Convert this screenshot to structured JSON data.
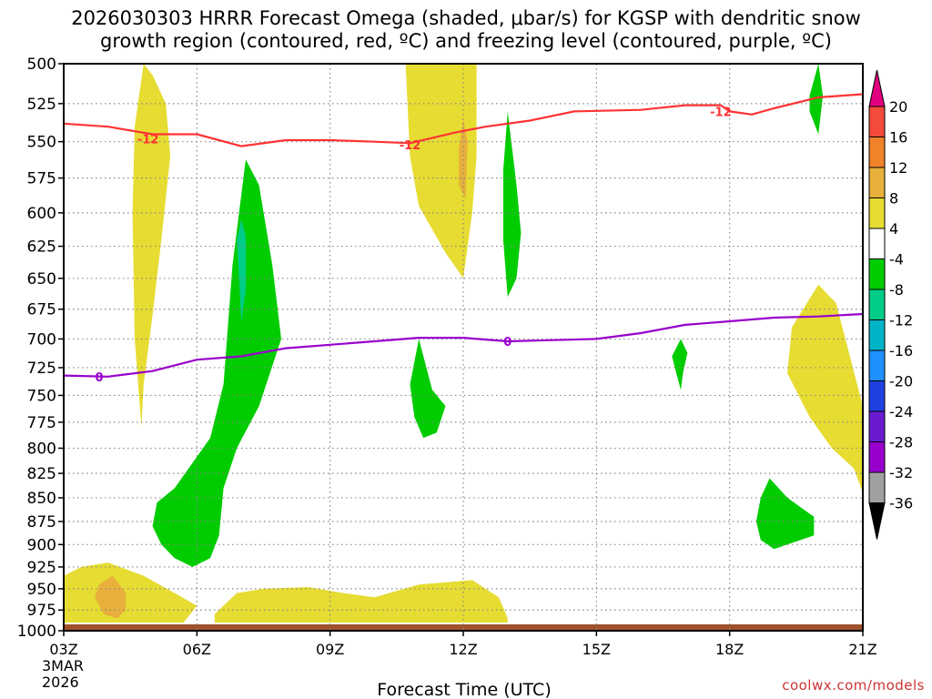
{
  "title": {
    "line1": "2026030303 HRRR Forecast Omega (shaded, μbar/s) for KGSP with dendritic snow",
    "line2": "growth region (contoured, red, ºC) and freezing level (contoured, purple, ºC)"
  },
  "credit": "coolwx.com/models",
  "colors": {
    "plot_background": "#ffffff",
    "ground": "#a0522d",
    "red_contour": "#ff3333",
    "purple_contour": "#9900cc"
  },
  "chart_data": {
    "type": "time-height contour",
    "title": "2026030303 HRRR Forecast Omega (shaded, μbar/s) for KGSP with dendritic snow growth region (contoured, red, ºC) and freezing level (contoured, purple, ºC)",
    "xlabel": "Forecast Time (UTC)",
    "ylabel": "",
    "x_range_hours": [
      3,
      21
    ],
    "y_range_hpa": [
      1000,
      500
    ],
    "y_scale": "log-pressure",
    "date_label": [
      "3MAR",
      "2026"
    ],
    "x_ticks": [
      {
        "hour": 3,
        "label": "03Z"
      },
      {
        "hour": 6,
        "label": "06Z"
      },
      {
        "hour": 9,
        "label": "09Z"
      },
      {
        "hour": 12,
        "label": "12Z"
      },
      {
        "hour": 15,
        "label": "15Z"
      },
      {
        "hour": 18,
        "label": "18Z"
      },
      {
        "hour": 21,
        "label": "21Z"
      }
    ],
    "y_ticks": [
      "500",
      "525",
      "550",
      "575",
      "600",
      "625",
      "650",
      "675",
      "700",
      "725",
      "750",
      "775",
      "800",
      "825",
      "850",
      "875",
      "900",
      "925",
      "950",
      "975",
      "1000"
    ],
    "grid": true,
    "colorbar": {
      "levels": [
        "20",
        "16",
        "12",
        "8",
        "4",
        "-4",
        "-8",
        "-12",
        "-16",
        "-20",
        "-24",
        "-28",
        "-32",
        "-36"
      ],
      "bins": [
        {
          "from": 20,
          "to": null,
          "color": "#e0007f"
        },
        {
          "from": 16,
          "to": 20,
          "color": "#f44b3c"
        },
        {
          "from": 12,
          "to": 16,
          "color": "#f0822a"
        },
        {
          "from": 8,
          "to": 12,
          "color": "#e8b03b"
        },
        {
          "from": 4,
          "to": 8,
          "color": "#e6dc32"
        },
        {
          "from": -4,
          "to": 4,
          "color": "#ffffff"
        },
        {
          "from": -8,
          "to": -4,
          "color": "#00cc00"
        },
        {
          "from": -12,
          "to": -8,
          "color": "#00cc88"
        },
        {
          "from": -16,
          "to": -12,
          "color": "#00b4c8"
        },
        {
          "from": -20,
          "to": -16,
          "color": "#1e90ff"
        },
        {
          "from": -24,
          "to": -20,
          "color": "#2040e0"
        },
        {
          "from": -28,
          "to": -24,
          "color": "#6a1bd0"
        },
        {
          "from": -32,
          "to": -28,
          "color": "#9900cc"
        },
        {
          "from": -36,
          "to": -32,
          "color": "#a0a0a0"
        },
        {
          "from": null,
          "to": -36,
          "color": "#000000"
        }
      ]
    },
    "omega_regions": [
      {
        "name": "upward-motion-06z-tower",
        "level": "-4 to -8",
        "color": "#00cc00",
        "points": [
          [
            5.0,
            880
          ],
          [
            5.1,
            855
          ],
          [
            5.5,
            840
          ],
          [
            6.3,
            790
          ],
          [
            6.6,
            740
          ],
          [
            6.8,
            640
          ],
          [
            7.1,
            562
          ],
          [
            7.4,
            580
          ],
          [
            7.7,
            640
          ],
          [
            7.9,
            700
          ],
          [
            7.4,
            760
          ],
          [
            6.9,
            800
          ],
          [
            6.6,
            840
          ],
          [
            6.5,
            890
          ],
          [
            6.3,
            915
          ],
          [
            5.9,
            925
          ],
          [
            5.5,
            915
          ],
          [
            5.2,
            900
          ]
        ]
      },
      {
        "name": "upward-motion-07z-core",
        "level": "-8 to -12",
        "color": "#00cc88",
        "points": [
          [
            7.0,
            605
          ],
          [
            7.1,
            617
          ],
          [
            7.1,
            660
          ],
          [
            7.0,
            685
          ],
          [
            6.95,
            650
          ],
          [
            6.9,
            620
          ]
        ]
      },
      {
        "name": "upward-motion-11z",
        "level": "-4 to -8",
        "color": "#00cc00",
        "points": [
          [
            10.8,
            740
          ],
          [
            11.0,
            700
          ],
          [
            11.3,
            745
          ],
          [
            11.6,
            760
          ],
          [
            11.4,
            785
          ],
          [
            11.1,
            790
          ],
          [
            10.9,
            770
          ]
        ]
      },
      {
        "name": "upward-motion-13z",
        "level": "-4 to -8",
        "color": "#00cc00",
        "points": [
          [
            13.0,
            530
          ],
          [
            13.2,
            580
          ],
          [
            13.3,
            615
          ],
          [
            13.2,
            650
          ],
          [
            13.0,
            665
          ],
          [
            12.9,
            620
          ],
          [
            12.9,
            570
          ]
        ]
      },
      {
        "name": "upward-motion-17z",
        "level": "-4 to -8",
        "color": "#00cc00",
        "points": [
          [
            16.7,
            715
          ],
          [
            16.9,
            700
          ],
          [
            17.05,
            712
          ],
          [
            16.95,
            730
          ],
          [
            16.9,
            745
          ],
          [
            16.8,
            730
          ]
        ]
      },
      {
        "name": "upward-motion-19z-lower",
        "level": "-4 to -8",
        "color": "#00cc00",
        "points": [
          [
            18.6,
            875
          ],
          [
            18.7,
            850
          ],
          [
            18.9,
            830
          ],
          [
            19.3,
            850
          ],
          [
            19.9,
            870
          ],
          [
            19.9,
            890
          ],
          [
            19.3,
            900
          ],
          [
            19.0,
            905
          ],
          [
            18.7,
            895
          ]
        ]
      },
      {
        "name": "upward-motion-20z-upper",
        "level": "-4 to -8",
        "color": "#00cc00",
        "points": [
          [
            19.8,
            520
          ],
          [
            20.0,
            500
          ],
          [
            20.1,
            520
          ],
          [
            20.0,
            545
          ],
          [
            19.8,
            530
          ]
        ]
      },
      {
        "name": "sinking-motion-05z",
        "level": "4 to 8",
        "color": "#e6dc32",
        "points": [
          [
            4.8,
            500
          ],
          [
            5.0,
            507
          ],
          [
            5.3,
            525
          ],
          [
            5.4,
            560
          ],
          [
            5.2,
            620
          ],
          [
            5.0,
            680
          ],
          [
            4.8,
            740
          ],
          [
            4.75,
            780
          ],
          [
            4.6,
            700
          ],
          [
            4.55,
            600
          ],
          [
            4.6,
            540
          ]
        ]
      },
      {
        "name": "sinking-motion-11z",
        "level": "4 to 8",
        "color": "#e6dc32",
        "points": [
          [
            10.7,
            500
          ],
          [
            12.3,
            500
          ],
          [
            12.3,
            560
          ],
          [
            12.2,
            600
          ],
          [
            12.0,
            650
          ],
          [
            11.6,
            630
          ],
          [
            11.0,
            595
          ],
          [
            10.8,
            560
          ]
        ]
      },
      {
        "name": "sinking-motion-12z-core",
        "level": "8 to 12",
        "color": "#e8b03b",
        "points": [
          [
            12.0,
            535
          ],
          [
            12.1,
            550
          ],
          [
            12.05,
            590
          ],
          [
            11.9,
            580
          ],
          [
            11.9,
            555
          ]
        ]
      },
      {
        "name": "sinking-motion-20z",
        "level": "4 to 8",
        "color": "#e6dc32",
        "points": [
          [
            19.4,
            690
          ],
          [
            20.0,
            655
          ],
          [
            20.4,
            670
          ],
          [
            21.0,
            760
          ],
          [
            21.0,
            845
          ],
          [
            20.8,
            820
          ],
          [
            20.3,
            800
          ],
          [
            19.8,
            770
          ],
          [
            19.3,
            730
          ]
        ]
      },
      {
        "name": "sinking-motion-lowlevel-west",
        "level": "4 to 8",
        "color": "#e6dc32",
        "points": [
          [
            3.0,
            935
          ],
          [
            3.4,
            925
          ],
          [
            4.0,
            920
          ],
          [
            4.8,
            935
          ],
          [
            5.5,
            955
          ],
          [
            6.0,
            970
          ],
          [
            5.7,
            990
          ],
          [
            3.0,
            990
          ]
        ]
      },
      {
        "name": "sinking-motion-lowlevel-east",
        "level": "4 to 8",
        "color": "#e6dc32",
        "points": [
          [
            6.4,
            980
          ],
          [
            6.9,
            955
          ],
          [
            7.5,
            950
          ],
          [
            8.5,
            948
          ],
          [
            9.3,
            955
          ],
          [
            10.0,
            960
          ],
          [
            11.0,
            945
          ],
          [
            12.2,
            940
          ],
          [
            12.8,
            960
          ],
          [
            13.0,
            985
          ],
          [
            13.0,
            990
          ],
          [
            6.4,
            990
          ]
        ]
      },
      {
        "name": "sinking-motion-04z-core",
        "level": "8 to 12",
        "color": "#e8b03b",
        "points": [
          [
            3.8,
            945
          ],
          [
            4.1,
            935
          ],
          [
            4.4,
            955
          ],
          [
            4.4,
            975
          ],
          [
            4.2,
            985
          ],
          [
            3.9,
            980
          ],
          [
            3.7,
            960
          ]
        ]
      }
    ],
    "red_contour": {
      "label": "-12",
      "label_positions": [
        [
          4.9,
          548
        ],
        [
          10.8,
          552
        ],
        [
          17.8,
          530
        ]
      ],
      "points": [
        [
          3.0,
          538
        ],
        [
          4.0,
          540
        ],
        [
          5.0,
          545
        ],
        [
          6.0,
          545
        ],
        [
          6.5,
          549
        ],
        [
          7.0,
          553
        ],
        [
          8.0,
          549
        ],
        [
          9.0,
          549
        ],
        [
          10.0,
          550
        ],
        [
          10.8,
          551
        ],
        [
          11.8,
          544
        ],
        [
          12.5,
          540
        ],
        [
          13.5,
          536
        ],
        [
          14.5,
          530
        ],
        [
          16.0,
          529
        ],
        [
          17.0,
          526
        ],
        [
          17.8,
          526
        ],
        [
          18.0,
          530
        ],
        [
          18.5,
          532
        ],
        [
          19.0,
          528
        ],
        [
          20.0,
          521
        ],
        [
          21.0,
          519
        ]
      ]
    },
    "purple_contour": {
      "label": "0",
      "label_positions": [
        [
          3.8,
          733
        ],
        [
          13.0,
          702
        ]
      ],
      "points": [
        [
          3.0,
          732
        ],
        [
          4.0,
          733
        ],
        [
          5.0,
          728
        ],
        [
          6.0,
          718
        ],
        [
          7.0,
          715
        ],
        [
          8.0,
          708
        ],
        [
          9.0,
          705
        ],
        [
          10.0,
          702
        ],
        [
          11.0,
          699
        ],
        [
          12.0,
          699
        ],
        [
          13.0,
          702
        ],
        [
          14.0,
          701
        ],
        [
          15.0,
          700
        ],
        [
          16.0,
          695
        ],
        [
          17.0,
          688
        ],
        [
          18.0,
          685
        ],
        [
          19.0,
          682
        ],
        [
          20.0,
          681
        ],
        [
          21.0,
          679
        ]
      ]
    }
  }
}
